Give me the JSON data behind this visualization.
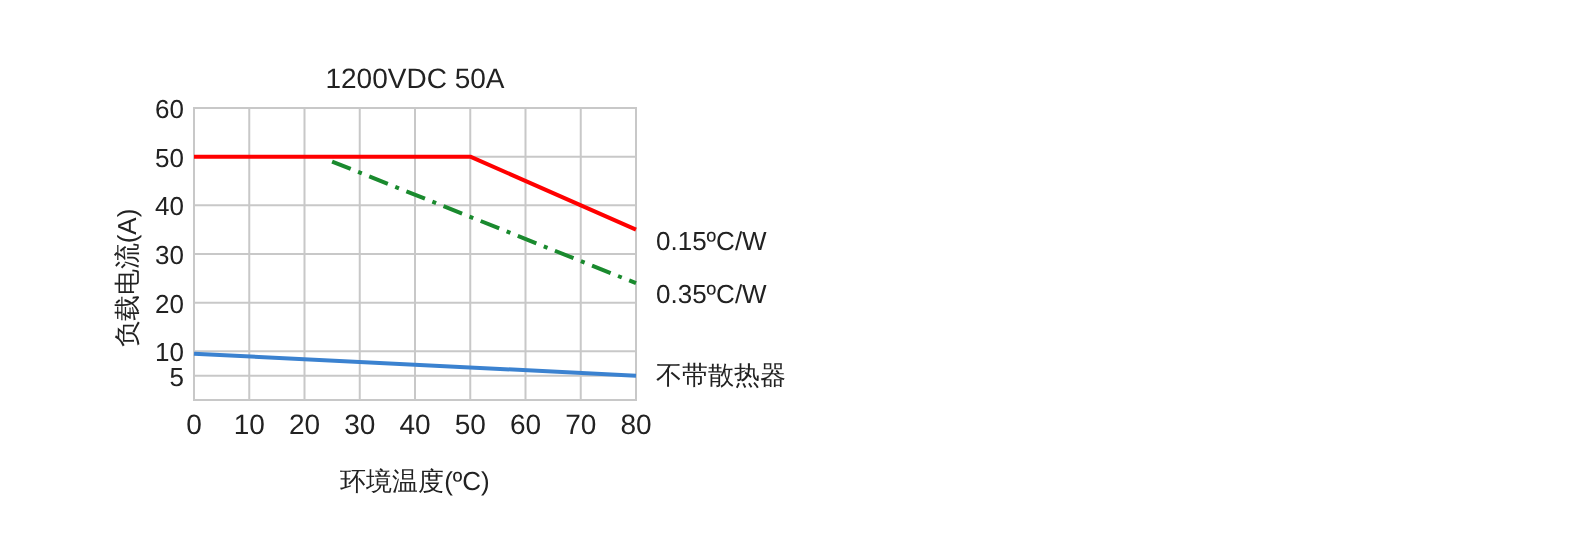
{
  "chart_data": {
    "type": "line",
    "title": "1200VDC 50A",
    "xlabel": "环境温度(ºC)",
    "ylabel": "负载电流(A)",
    "xlim": [
      0,
      80
    ],
    "xticks": [
      0,
      10,
      20,
      30,
      40,
      50,
      60,
      70,
      80
    ],
    "ylim": [
      0,
      60
    ],
    "yticks": [
      {
        "value": 0,
        "label": null
      },
      5,
      10,
      20,
      30,
      40,
      50,
      60
    ],
    "grid": true,
    "legend": false,
    "series": [
      {
        "name": "0.15ºC/W",
        "color": "#ff0000",
        "x": [
          0,
          50,
          80
        ],
        "values": [
          50,
          50,
          35
        ],
        "line_style": "solid"
      },
      {
        "name": "0.35ºC/W",
        "color": "#1a8a2e",
        "x": [
          25,
          80
        ],
        "values": [
          49,
          24
        ],
        "line_style": "dashdot"
      },
      {
        "name": "不带散热器",
        "color": "#3b82d0",
        "x": [
          0,
          80
        ],
        "values": [
          9.5,
          5
        ],
        "line_style": "solid"
      }
    ]
  }
}
